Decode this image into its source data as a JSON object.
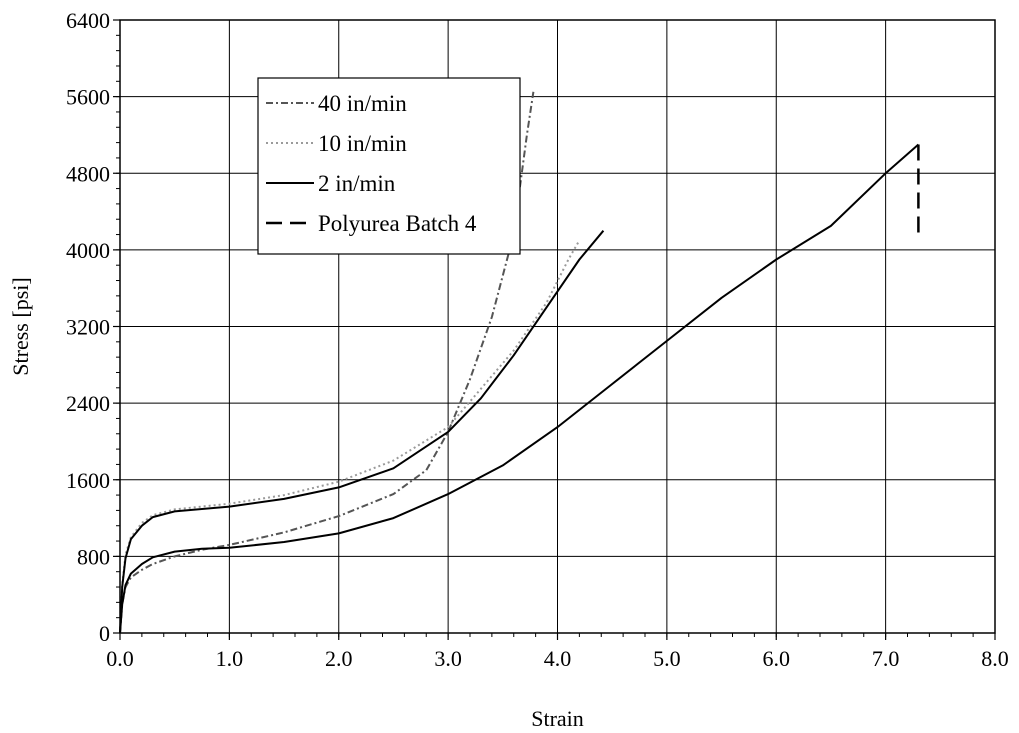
{
  "chart_data": {
    "type": "line",
    "title": "",
    "xlabel": "Strain",
    "ylabel": "Stress [psi]",
    "xlim": [
      0,
      8
    ],
    "ylim": [
      0,
      6400
    ],
    "x_ticks": [
      "0.0",
      "1.0",
      "2.0",
      "3.0",
      "4.0",
      "5.0",
      "6.0",
      "7.0",
      "8.0"
    ],
    "y_ticks": [
      "0",
      "800",
      "1600",
      "2400",
      "3200",
      "4000",
      "4800",
      "5600",
      "6400"
    ],
    "grid": true,
    "legend_position": "upper-left inside plot",
    "series": [
      {
        "name": "40 in/min",
        "style": "dash-dot",
        "color": "#555555",
        "points": [
          [
            0.0,
            0
          ],
          [
            0.02,
            300
          ],
          [
            0.05,
            480
          ],
          [
            0.1,
            580
          ],
          [
            0.2,
            660
          ],
          [
            0.3,
            720
          ],
          [
            0.5,
            800
          ],
          [
            0.75,
            870
          ],
          [
            1.0,
            920
          ],
          [
            1.5,
            1050
          ],
          [
            2.0,
            1220
          ],
          [
            2.5,
            1450
          ],
          [
            2.8,
            1700
          ],
          [
            3.0,
            2100
          ],
          [
            3.2,
            2650
          ],
          [
            3.4,
            3300
          ],
          [
            3.55,
            3950
          ],
          [
            3.65,
            4600
          ],
          [
            3.72,
            5200
          ],
          [
            3.78,
            5650
          ]
        ]
      },
      {
        "name": "10 in/min",
        "style": "dotted",
        "color": "#9a9a9a",
        "points": [
          [
            0.0,
            0
          ],
          [
            0.02,
            500
          ],
          [
            0.05,
            820
          ],
          [
            0.1,
            1000
          ],
          [
            0.2,
            1150
          ],
          [
            0.3,
            1230
          ],
          [
            0.5,
            1290
          ],
          [
            1.0,
            1350
          ],
          [
            1.5,
            1440
          ],
          [
            2.0,
            1580
          ],
          [
            2.5,
            1800
          ],
          [
            3.0,
            2150
          ],
          [
            3.3,
            2550
          ],
          [
            3.6,
            2950
          ],
          [
            3.9,
            3450
          ],
          [
            4.1,
            3900
          ],
          [
            4.2,
            4100
          ]
        ]
      },
      {
        "name": "2 in/min",
        "style": "solid",
        "color": "#000000",
        "points": [
          [
            0.0,
            0
          ],
          [
            0.02,
            480
          ],
          [
            0.05,
            780
          ],
          [
            0.1,
            980
          ],
          [
            0.2,
            1120
          ],
          [
            0.3,
            1210
          ],
          [
            0.5,
            1270
          ],
          [
            1.0,
            1320
          ],
          [
            1.5,
            1400
          ],
          [
            2.0,
            1520
          ],
          [
            2.5,
            1720
          ],
          [
            3.0,
            2100
          ],
          [
            3.3,
            2450
          ],
          [
            3.6,
            2900
          ],
          [
            3.9,
            3400
          ],
          [
            4.2,
            3900
          ],
          [
            4.42,
            4200
          ]
        ]
      },
      {
        "name": "Polyurea Batch 4",
        "style": "dashed",
        "color": "#000000",
        "points": [
          [
            7.3,
            5100
          ],
          [
            7.3,
            4100
          ]
        ]
      },
      {
        "name": "",
        "style": "solid",
        "color": "#000000",
        "points": [
          [
            0.0,
            0
          ],
          [
            0.02,
            300
          ],
          [
            0.05,
            500
          ],
          [
            0.1,
            620
          ],
          [
            0.2,
            720
          ],
          [
            0.3,
            790
          ],
          [
            0.5,
            850
          ],
          [
            0.75,
            880
          ],
          [
            1.0,
            890
          ],
          [
            1.5,
            950
          ],
          [
            2.0,
            1040
          ],
          [
            2.5,
            1200
          ],
          [
            3.0,
            1450
          ],
          [
            3.5,
            1750
          ],
          [
            4.0,
            2150
          ],
          [
            4.5,
            2600
          ],
          [
            5.0,
            3050
          ],
          [
            5.5,
            3500
          ],
          [
            6.0,
            3900
          ],
          [
            6.5,
            4250
          ],
          [
            7.0,
            4800
          ],
          [
            7.3,
            5100
          ]
        ]
      }
    ],
    "legend": [
      {
        "label": "40 in/min",
        "style": "dash-dot",
        "color": "#555555"
      },
      {
        "label": "10 in/min",
        "style": "dotted",
        "color": "#9a9a9a"
      },
      {
        "label": "2 in/min",
        "style": "solid",
        "color": "#000000"
      },
      {
        "label": "Polyurea Batch 4",
        "style": "dashed",
        "color": "#000000"
      }
    ]
  }
}
